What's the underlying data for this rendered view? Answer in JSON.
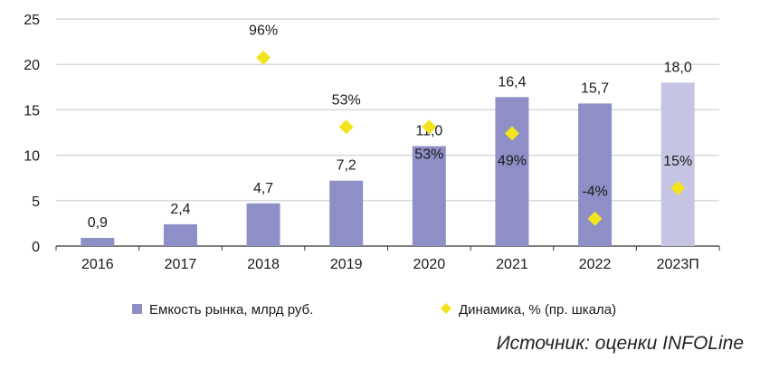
{
  "chart_data": {
    "type": "bar",
    "categories": [
      "2016",
      "2017",
      "2018",
      "2019",
      "2020",
      "2021",
      "2022",
      "2023П"
    ],
    "series": [
      {
        "name": "Емкость рынка, млрд руб.",
        "type": "bar",
        "axis": "left",
        "values": [
          0.9,
          2.4,
          4.7,
          7.2,
          11.0,
          16.4,
          15.7,
          18.0
        ],
        "labels": [
          "0,9",
          "2,4",
          "4,7",
          "7,2",
          "11,0",
          "16,4",
          "15,7",
          "18,0"
        ],
        "forecast_index": 7
      },
      {
        "name": "Динамика, % (пр. шкала)",
        "type": "scatter",
        "axis": "right",
        "values": [
          null,
          null,
          96,
          53,
          53,
          49,
          -4,
          15
        ],
        "labels": [
          "",
          "",
          "96%",
          "53%",
          "53%",
          "49%",
          "-4%",
          "15%"
        ]
      }
    ],
    "ylim": [
      0,
      25
    ],
    "yticks": [
      0,
      5,
      10,
      15,
      20,
      25
    ],
    "y2lim": [
      -21,
      120
    ],
    "grid": true,
    "legend": "bottom",
    "colors": {
      "bar": "#8e8fc6",
      "forecast": "#c5c5e3",
      "marker": "#f2e41c",
      "grid": "#d9d9d9"
    }
  },
  "source": "Источник: оценки INFOLine"
}
